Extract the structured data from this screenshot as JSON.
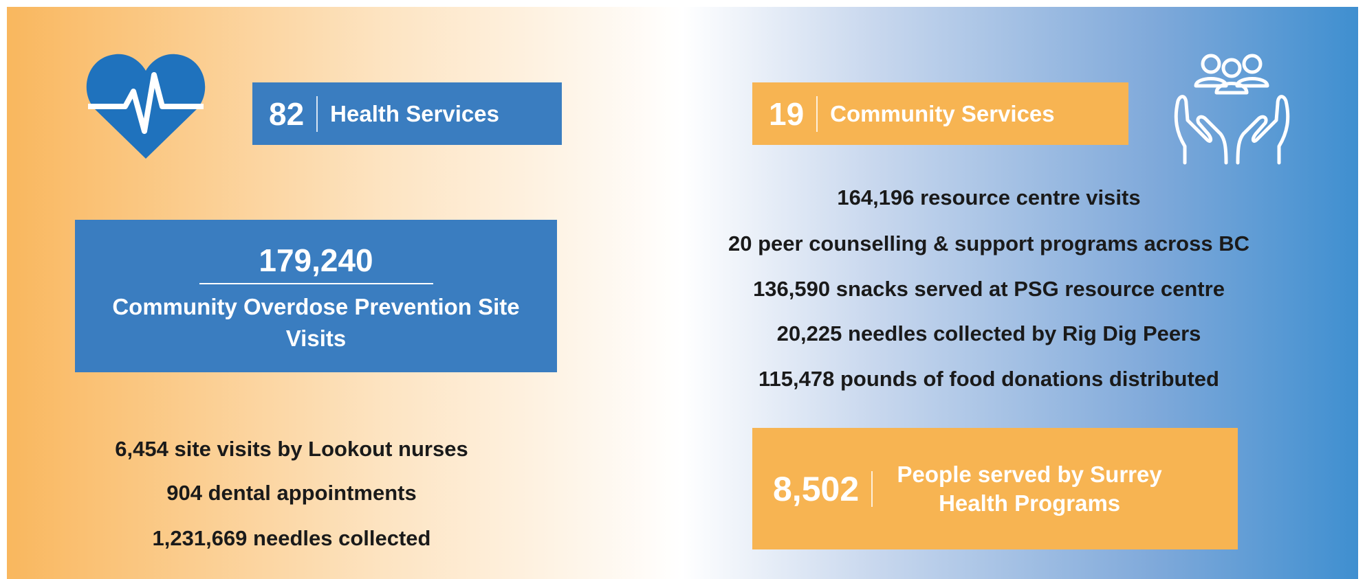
{
  "health": {
    "count": "82",
    "label": "Health Services",
    "highlight": {
      "number": "179,240",
      "label": "Community Overdose Prevention Site Visits"
    },
    "items": [
      "6,454 site visits by Lookout nurses",
      "904 dental appointments",
      "1,231,669 needles collected"
    ]
  },
  "community": {
    "count": "19",
    "label": "Community Services",
    "items": [
      "164,196 resource centre visits",
      "20 peer counselling & support programs across BC",
      "136,590 snacks served at PSG resource centre",
      "20,225 needles collected by Rig Dig Peers",
      "115,478 pounds of food donations distributed"
    ],
    "highlight": {
      "number": "8,502",
      "label": "People served by Surrey Health Programs"
    }
  }
}
